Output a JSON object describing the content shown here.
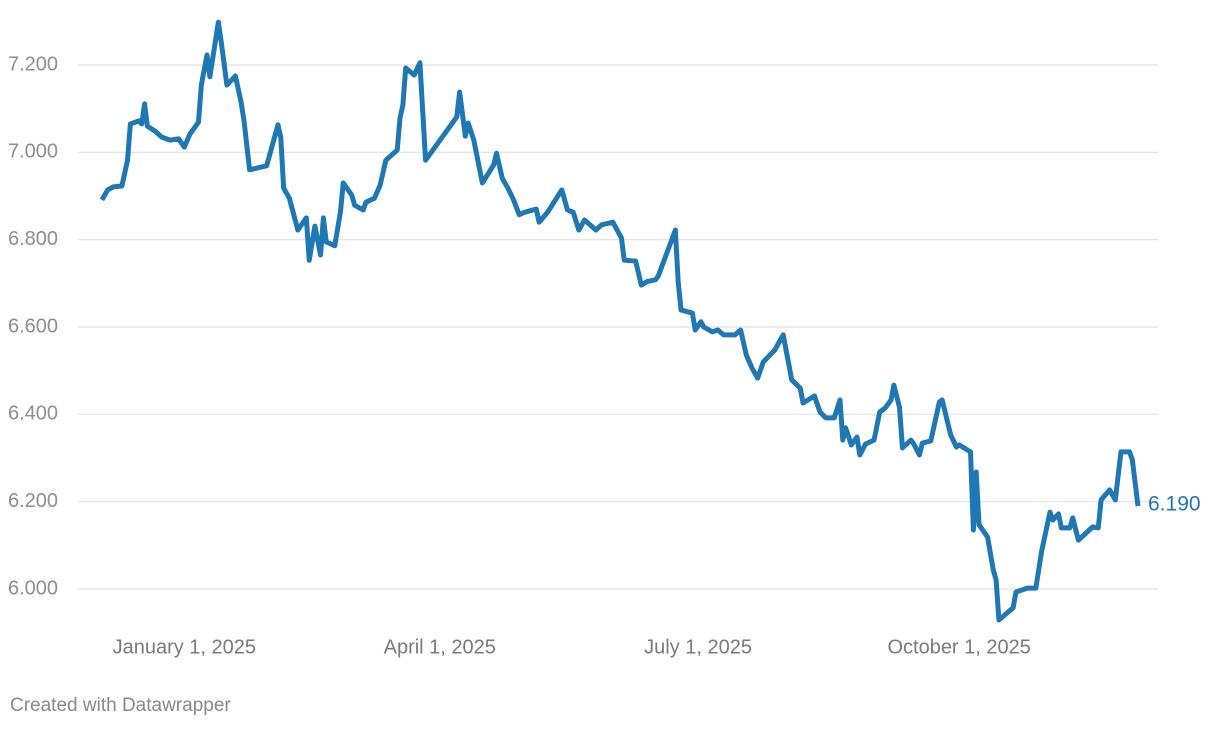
{
  "chart_data": {
    "type": "line",
    "color": "#1f77b4",
    "grid": true,
    "credit": "Created with Datawrapper",
    "xlim": [
      "2024-12-03",
      "2025-12-03"
    ],
    "xticks": [
      {
        "value": "2025-01-01",
        "label": "January 1, 2025"
      },
      {
        "value": "2025-04-01",
        "label": "April 1, 2025"
      },
      {
        "value": "2025-07-01",
        "label": "July 1, 2025"
      },
      {
        "value": "2025-10-01",
        "label": "October 1, 2025"
      }
    ],
    "ylim": [
      5.9,
      7.3
    ],
    "yticks": [
      {
        "value": 6.0,
        "label": "6.000"
      },
      {
        "value": 6.2,
        "label": "6.200"
      },
      {
        "value": 6.4,
        "label": "6.400"
      },
      {
        "value": 6.6,
        "label": "6.600"
      },
      {
        "value": 6.8,
        "label": "6.800"
      },
      {
        "value": 7.0,
        "label": "7.000"
      },
      {
        "value": 7.2,
        "label": "7.200"
      }
    ],
    "x": [
      "2024-12-03",
      "2024-12-05",
      "2024-12-07",
      "2024-12-10",
      "2024-12-12",
      "2024-12-13",
      "2024-12-16",
      "2024-12-17",
      "2024-12-18",
      "2024-12-19",
      "2024-12-22",
      "2024-12-24",
      "2024-12-27",
      "2024-12-30",
      "2025-01-01",
      "2025-01-03",
      "2025-01-06",
      "2025-01-07",
      "2025-01-09",
      "2025-01-10",
      "2025-01-13",
      "2025-01-14",
      "2025-01-16",
      "2025-01-19",
      "2025-01-21",
      "2025-01-22",
      "2025-01-24",
      "2025-01-30",
      "2025-02-03",
      "2025-02-04",
      "2025-02-05",
      "2025-02-07",
      "2025-02-10",
      "2025-02-13",
      "2025-02-14",
      "2025-02-16",
      "2025-02-18",
      "2025-02-19",
      "2025-02-20",
      "2025-02-23",
      "2025-02-25",
      "2025-02-26",
      "2025-03-01",
      "2025-03-02",
      "2025-03-05",
      "2025-03-06",
      "2025-03-09",
      "2025-03-11",
      "2025-03-13",
      "2025-03-17",
      "2025-03-18",
      "2025-03-19",
      "2025-03-20",
      "2025-03-23",
      "2025-03-25",
      "2025-03-27",
      "2025-04-07",
      "2025-04-08",
      "2025-04-10",
      "2025-04-11",
      "2025-04-13",
      "2025-04-16",
      "2025-04-20",
      "2025-04-21",
      "2025-04-23",
      "2025-04-25",
      "2025-04-27",
      "2025-04-29",
      "2025-05-01",
      "2025-05-05",
      "2025-05-06",
      "2025-05-09",
      "2025-05-14",
      "2025-05-16",
      "2025-05-18",
      "2025-05-20",
      "2025-05-22",
      "2025-05-26",
      "2025-05-28",
      "2025-06-01",
      "2025-06-04",
      "2025-06-05",
      "2025-06-09",
      "2025-06-11",
      "2025-06-13",
      "2025-06-16",
      "2025-06-17",
      "2025-06-23",
      "2025-06-24",
      "2025-06-25",
      "2025-06-29",
      "2025-06-30",
      "2025-07-02",
      "2025-07-03",
      "2025-07-06",
      "2025-07-08",
      "2025-07-10",
      "2025-07-14",
      "2025-07-16",
      "2025-07-18",
      "2025-07-20",
      "2025-07-22",
      "2025-07-24",
      "2025-07-28",
      "2025-07-31",
      "2025-08-03",
      "2025-08-06",
      "2025-08-07",
      "2025-08-11",
      "2025-08-13",
      "2025-08-15",
      "2025-08-18",
      "2025-08-20",
      "2025-08-21",
      "2025-08-22",
      "2025-08-24",
      "2025-08-26",
      "2025-08-27",
      "2025-08-29",
      "2025-09-01",
      "2025-09-03",
      "2025-09-05",
      "2025-09-07",
      "2025-09-08",
      "2025-09-10",
      "2025-09-11",
      "2025-09-14",
      "2025-09-15",
      "2025-09-17",
      "2025-09-18",
      "2025-09-21",
      "2025-09-24",
      "2025-09-25",
      "2025-09-28",
      "2025-09-30",
      "2025-10-01",
      "2025-10-05",
      "2025-10-06",
      "2025-10-07",
      "2025-10-08",
      "2025-10-11",
      "2025-10-13",
      "2025-10-14",
      "2025-10-15",
      "2025-10-20",
      "2025-10-21",
      "2025-10-25",
      "2025-10-28",
      "2025-10-30",
      "2025-11-02",
      "2025-11-03",
      "2025-11-05",
      "2025-11-06",
      "2025-11-09",
      "2025-11-10",
      "2025-11-12",
      "2025-11-17",
      "2025-11-19",
      "2025-11-20",
      "2025-11-23",
      "2025-11-25",
      "2025-11-27",
      "2025-11-30",
      "2025-12-01",
      "2025-12-03"
    ],
    "values": [
      6.891,
      6.914,
      6.921,
      6.923,
      6.982,
      7.065,
      7.072,
      7.065,
      7.111,
      7.06,
      7.047,
      7.035,
      7.028,
      7.031,
      7.012,
      7.042,
      7.069,
      7.154,
      7.223,
      7.173,
      7.298,
      7.253,
      7.154,
      7.175,
      7.115,
      7.074,
      6.96,
      6.969,
      7.063,
      7.033,
      6.918,
      6.895,
      6.822,
      6.85,
      6.753,
      6.831,
      6.765,
      6.85,
      6.795,
      6.786,
      6.863,
      6.93,
      6.902,
      6.879,
      6.868,
      6.886,
      6.895,
      6.925,
      6.982,
      7.005,
      7.079,
      7.108,
      7.193,
      7.177,
      7.205,
      6.982,
      7.081,
      7.138,
      7.037,
      7.067,
      7.028,
      6.93,
      6.971,
      6.998,
      6.941,
      6.918,
      6.891,
      6.857,
      6.863,
      6.87,
      6.84,
      6.863,
      6.914,
      6.868,
      6.863,
      6.822,
      6.845,
      6.822,
      6.834,
      6.84,
      6.804,
      6.753,
      6.751,
      6.696,
      6.704,
      6.708,
      6.717,
      6.822,
      6.704,
      6.639,
      6.632,
      6.593,
      6.612,
      6.6,
      6.589,
      6.593,
      6.582,
      6.582,
      6.593,
      6.536,
      6.506,
      6.483,
      6.52,
      6.547,
      6.582,
      6.479,
      6.46,
      6.426,
      6.442,
      6.405,
      6.392,
      6.392,
      6.433,
      6.341,
      6.369,
      6.33,
      6.348,
      6.307,
      6.332,
      6.341,
      6.405,
      6.415,
      6.433,
      6.467,
      6.415,
      6.323,
      6.341,
      6.332,
      6.307,
      6.334,
      6.339,
      6.428,
      6.433,
      6.353,
      6.325,
      6.33,
      6.314,
      6.135,
      6.268,
      6.147,
      6.119,
      6.044,
      6.021,
      5.929,
      5.957,
      5.993,
      6.002,
      6.002,
      6.085,
      6.176,
      6.158,
      6.172,
      6.14,
      6.14,
      6.163,
      6.112,
      6.142,
      6.14,
      6.204,
      6.227,
      6.204,
      6.314,
      6.314,
      6.296,
      6.19
    ],
    "value_labels": [
      null,
      null,
      null,
      null,
      null,
      null,
      null,
      null,
      null,
      null,
      null,
      null,
      null,
      null,
      null,
      null,
      null,
      null,
      null,
      null,
      null,
      null,
      null,
      null,
      null,
      null,
      null,
      null,
      null,
      null,
      null,
      null,
      null,
      null,
      null,
      null,
      null,
      null,
      null,
      null,
      null,
      null,
      null,
      null,
      null,
      null,
      null,
      null,
      null,
      null,
      null,
      null,
      null,
      null,
      null,
      null,
      null,
      null,
      null,
      null,
      null,
      null,
      null,
      null,
      null,
      null,
      null,
      null,
      null,
      null,
      null,
      null,
      null,
      null,
      null,
      null,
      null,
      null,
      null,
      null,
      null,
      null,
      null,
      null,
      null,
      null,
      null,
      null,
      null,
      null,
      null,
      null,
      null,
      null,
      null,
      null,
      null,
      null,
      null,
      null,
      null,
      null,
      null,
      null,
      null,
      null,
      null,
      null,
      null,
      null,
      null,
      null,
      null,
      null,
      null,
      null,
      null,
      null,
      null,
      null,
      null,
      null,
      null,
      null,
      null,
      null,
      null,
      null,
      null,
      null,
      null,
      null,
      null,
      null,
      null,
      null,
      null,
      null,
      null,
      null,
      null,
      null,
      null,
      null,
      null,
      null,
      null,
      null,
      null,
      null,
      null,
      null,
      null,
      null,
      null,
      null,
      null,
      null,
      null,
      null,
      null,
      null,
      null,
      null,
      "6.190"
    ]
  }
}
